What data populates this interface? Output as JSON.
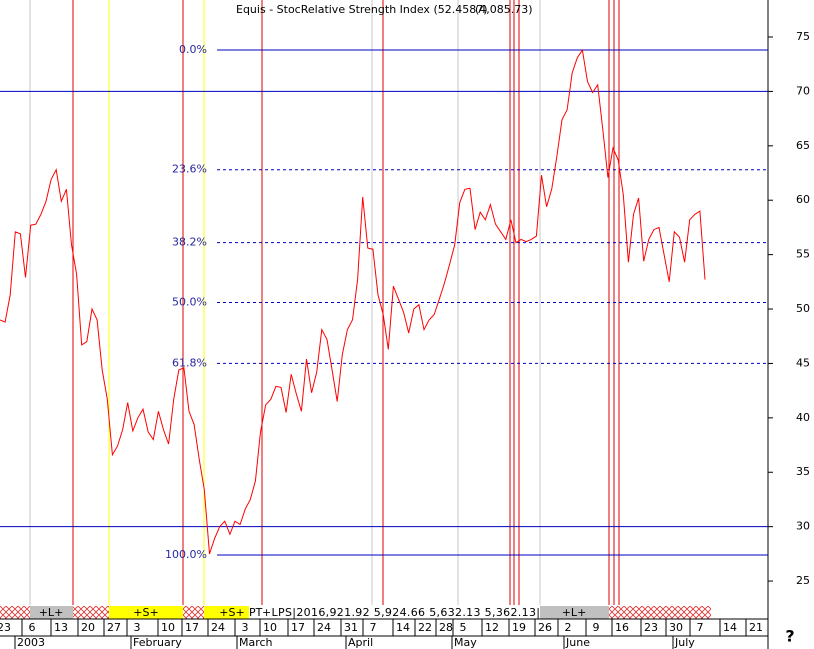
{
  "chart_data": {
    "type": "line",
    "title": "Equis - StocRelative Strength Index (52.4587)",
    "subtitle": "(4,085.73)",
    "color": "#ff0000",
    "values": [
      49.0,
      48.8,
      51.3,
      57.1,
      56.9,
      52.9,
      57.7,
      57.8,
      58.7,
      59.9,
      61.9,
      62.8,
      59.9,
      61.0,
      55.9,
      53.2,
      46.7,
      47.0,
      50.0,
      49.0,
      44.4,
      41.7,
      36.6,
      37.4,
      38.9,
      41.4,
      38.8,
      40.0,
      40.8,
      38.7,
      38.0,
      40.6,
      38.9,
      37.6,
      41.7,
      44.4,
      44.6,
      40.6,
      39.4,
      36.2,
      33.4,
      27.5,
      28.9,
      30.0,
      30.5,
      29.3,
      30.5,
      30.2,
      31.6,
      32.5,
      34.2,
      38.7,
      41.2,
      41.7,
      42.9,
      42.8,
      40.5,
      44.0,
      42.2,
      40.6,
      45.4,
      42.3,
      44.2,
      48.1,
      47.2,
      44.4,
      41.5,
      45.8,
      48.1,
      49.0,
      52.7,
      60.3,
      55.6,
      55.5,
      51.3,
      49.5,
      46.3,
      52.1,
      50.9,
      49.7,
      47.8,
      50.0,
      50.4,
      48.1,
      49.0,
      49.5,
      50.9,
      52.4,
      54.1,
      55.9,
      59.8,
      61.0,
      61.1,
      57.3,
      58.9,
      58.2,
      59.6,
      57.8,
      57.1,
      56.4,
      58.2,
      56.1,
      56.4,
      56.2,
      56.4,
      56.7,
      62.3,
      59.4,
      61.0,
      64.0,
      67.4,
      68.3,
      71.7,
      73.1,
      73.8,
      70.9,
      69.9,
      70.6,
      66.5,
      62.1,
      64.8,
      63.7,
      60.5,
      54.3,
      58.7,
      60.2,
      54.4,
      56.4,
      57.3,
      57.5,
      55.0,
      52.5,
      57.1,
      56.6,
      54.3,
      58.2,
      58.7,
      59.0,
      52.7
    ],
    "ylim": [
      22.8,
      78.4
    ],
    "yticks": [
      25,
      30,
      35,
      40,
      45,
      50,
      55,
      60,
      65,
      70,
      75
    ],
    "hlines": [
      70,
      30
    ],
    "fib_levels": [
      {
        "value": 73.8,
        "label": "0.0%"
      },
      {
        "value": 62.8,
        "label": "23.6%"
      },
      {
        "value": 56.1,
        "label": "38.2%"
      },
      {
        "value": 50.6,
        "label": "50.0%"
      },
      {
        "value": 45.0,
        "label": "61.8%"
      },
      {
        "value": 27.4,
        "label": "100.0%"
      }
    ],
    "x_labels": [
      "23",
      "6",
      "13",
      "20",
      "27",
      "3",
      "10",
      "17",
      "24",
      "3",
      "10",
      "17",
      "24",
      "31",
      "7",
      "14",
      "22",
      "28",
      "5",
      "12",
      "19",
      "26",
      "2",
      "9",
      "16",
      "23",
      "30",
      "7",
      "14",
      "21"
    ],
    "month_labels": [
      "2003",
      "February",
      "March",
      "April",
      "May",
      "June",
      "July"
    ],
    "signals": [
      "+L+",
      "+S+",
      "+S+",
      "PT",
      "+LPS|2016,921.92 5,924.66 5,632.13 5,362.13|",
      "+L+"
    ],
    "help": "?"
  }
}
